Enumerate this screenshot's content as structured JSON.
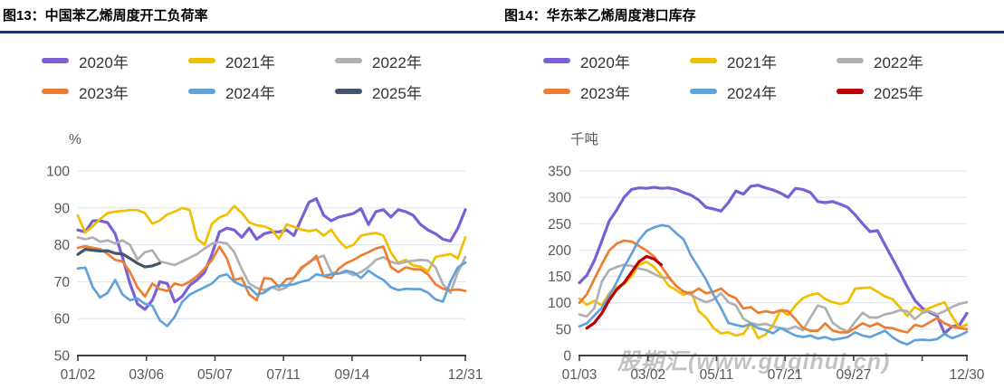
{
  "watermark": {
    "text": "股期汇(www.guqihui.cn)"
  },
  "style": {
    "accent_underline": "#17375E",
    "gridline_color": "#dce3f0",
    "axis_color": "#404040",
    "tick_label_color": "#595959"
  },
  "chart_data": [
    {
      "type": "line",
      "title": "图13：中国苯乙烯周度开工负荷率",
      "ylabel": "%",
      "y_axis": {
        "min": 50,
        "max": 100,
        "step": 10
      },
      "x_max": 52,
      "x_unit": "week",
      "x_ticks": [
        {
          "pos": 0,
          "label": "01/02"
        },
        {
          "pos": 9.2,
          "label": "03/06"
        },
        {
          "pos": 18.4,
          "label": "05/07"
        },
        {
          "pos": 27.6,
          "label": "07/11"
        },
        {
          "pos": 36.8,
          "label": "09/14"
        },
        {
          "pos": 46,
          "label": ""
        },
        {
          "pos": 52,
          "label": "12/31"
        }
      ],
      "series": [
        {
          "name": "2020年",
          "color": "#7A5FD5",
          "x_start": 0,
          "values": [
            84,
            83.5,
            86.5,
            86.5,
            86,
            83,
            76.5,
            69.5,
            64,
            62.5,
            65,
            70,
            69.5,
            64.5,
            66,
            69,
            70.5,
            72.5,
            77.5,
            83.5,
            84.5,
            84,
            82,
            84.5,
            81.5,
            83,
            83.5,
            83.5,
            84,
            82.5,
            87,
            91.5,
            92.5,
            88,
            86.5,
            87.5,
            88,
            88.5,
            89.8,
            85.5,
            89,
            89.5,
            87.5,
            89.5,
            89,
            88,
            85.5,
            84,
            83,
            81.5,
            81,
            84.5,
            89.5
          ]
        },
        {
          "name": "2021年",
          "color": "#F0C000",
          "x_start": 0,
          "values": [
            87.9,
            83.3,
            85,
            87,
            88.6,
            89,
            89.2,
            89.4,
            89.4,
            88.6,
            85.7,
            86.6,
            88.2,
            89,
            90,
            89.4,
            81.6,
            80,
            85.7,
            87.4,
            88.2,
            90.5,
            88.6,
            86.1,
            85.3,
            85,
            84.1,
            81.6,
            85.5,
            84.9,
            84.1,
            83.7,
            84.1,
            82.5,
            84.1,
            81.2,
            79.2,
            80,
            82.5,
            82.9,
            83.2,
            82.5,
            78,
            75.1,
            75.9,
            74.4,
            74.1,
            72.8,
            76.7,
            77.1,
            77.5,
            76.3,
            82
          ]
        },
        {
          "name": "2022年",
          "color": "#B0B0B0",
          "x_start": 0,
          "values": [
            82,
            81.5,
            82,
            80.8,
            81.2,
            80.4,
            81.2,
            80,
            76,
            78,
            78.5,
            75.5,
            75,
            74.5,
            75.5,
            76.5,
            77.5,
            79,
            80.3,
            80.7,
            80.4,
            78,
            73.4,
            69.5,
            68.3,
            67.7,
            68.5,
            67.7,
            68.5,
            71,
            73.4,
            75.4,
            76.3,
            77.1,
            72.6,
            72.2,
            72.6,
            71.8,
            72.6,
            74,
            75.9,
            76.7,
            75.4,
            74.9,
            75.4,
            75.7,
            75.9,
            75.7,
            73.9,
            69.3,
            67,
            72.6,
            76.7
          ]
        },
        {
          "name": "2023年",
          "color": "#ED7D31",
          "x_start": 0,
          "values": [
            79.2,
            79.6,
            79.2,
            78.8,
            77.5,
            75.9,
            75.5,
            72.6,
            68.5,
            66,
            69.5,
            68,
            67.5,
            69.5,
            69,
            70,
            71.5,
            73.5,
            75.9,
            79.5,
            76.3,
            70.5,
            71,
            66.5,
            65,
            71,
            70.7,
            68.5,
            70.7,
            71,
            73.9,
            75.1,
            77,
            71.5,
            71,
            73.5,
            75,
            75.9,
            77.1,
            78,
            79,
            79.5,
            74,
            72.6,
            73.9,
            73.4,
            73.3,
            72,
            69.3,
            68.1,
            67.7,
            67.9,
            67.5
          ]
        },
        {
          "name": "2024年",
          "color": "#62A2DB",
          "x_start": 0,
          "values": [
            73.6,
            73.8,
            68.5,
            65.7,
            67,
            70.5,
            66.5,
            65,
            65.5,
            64,
            63.5,
            59.5,
            58,
            60.5,
            64.5,
            66.5,
            67.5,
            68.5,
            69.5,
            71.5,
            72,
            70,
            69,
            68.5,
            66.5,
            67,
            68.5,
            69,
            69,
            69.3,
            70,
            70.5,
            72,
            71.6,
            72,
            72.2,
            73,
            72.5,
            71,
            73,
            71.6,
            70.5,
            68.5,
            67.7,
            68.1,
            68,
            68,
            67,
            65.2,
            64.6,
            70,
            73.9,
            75.2
          ]
        },
        {
          "name": "2025年",
          "color": "#44546A",
          "x_start": 0,
          "values": [
            77.4,
            78.8,
            78.5,
            78.3,
            78.4,
            77.7,
            77.5,
            76.3,
            75,
            74,
            74.3,
            75
          ]
        }
      ]
    },
    {
      "type": "line",
      "title": "图14：华东苯乙烯周度港口库存",
      "ylabel": "千吨",
      "y_axis": {
        "min": 0,
        "max": 350,
        "step": 50
      },
      "x_max": 52,
      "x_unit": "week",
      "x_ticks": [
        {
          "pos": 0,
          "label": "01/03"
        },
        {
          "pos": 9.2,
          "label": "03/02"
        },
        {
          "pos": 18.4,
          "label": "05/11"
        },
        {
          "pos": 27.6,
          "label": "07/21"
        },
        {
          "pos": 36.8,
          "label": "09/27"
        },
        {
          "pos": 46,
          "label": ""
        },
        {
          "pos": 52,
          "label": "12/30"
        }
      ],
      "series": [
        {
          "name": "2020年",
          "color": "#7A5FD5",
          "x_start": 0,
          "values": [
            138,
            152,
            180,
            217,
            255,
            276,
            300,
            315,
            318,
            317,
            319,
            317,
            318,
            315,
            309,
            304,
            295,
            281,
            278,
            274,
            290,
            312,
            306,
            321,
            323,
            318,
            314,
            308,
            300,
            317,
            315,
            309,
            292,
            290,
            292,
            287,
            281,
            267,
            250,
            235,
            237,
            210,
            184,
            158,
            130,
            105,
            90,
            82,
            75,
            42,
            55,
            58,
            80
          ]
        },
        {
          "name": "2021年",
          "color": "#F0C000",
          "x_start": 0,
          "values": [
            108,
            96,
            104,
            95,
            118,
            130,
            136,
            150,
            172,
            178,
            168,
            152,
            132,
            124,
            115,
            121,
            84,
            72,
            52,
            42,
            44,
            38,
            41,
            61,
            33,
            40,
            58,
            86,
            77,
            95,
            109,
            115,
            118,
            107,
            101,
            98,
            101,
            127,
            128,
            129,
            121,
            112,
            107,
            92,
            75,
            92,
            84,
            90,
            96,
            101,
            75,
            53,
            59
          ]
        },
        {
          "name": "2022年",
          "color": "#B0B0B0",
          "x_start": 0,
          "values": [
            78,
            74,
            90,
            140,
            162,
            168,
            172,
            170,
            165,
            162,
            155,
            148,
            147,
            132,
            121,
            115,
            107,
            101,
            106,
            118,
            101,
            95,
            70,
            62,
            58,
            60,
            55,
            52,
            50,
            55,
            48,
            72,
            95,
            90,
            62,
            52,
            45,
            64,
            81,
            72,
            72,
            78,
            81,
            86,
            84,
            69,
            81,
            84,
            78,
            84,
            92,
            98,
            101
          ]
        },
        {
          "name": "2023年",
          "color": "#ED7D31",
          "x_start": 0,
          "values": [
            100,
            116,
            145,
            173,
            199,
            212,
            218,
            216,
            208,
            199,
            188,
            169,
            149,
            132,
            121,
            118,
            127,
            118,
            121,
            127,
            115,
            109,
            89,
            92,
            81,
            84,
            81,
            86,
            84,
            69,
            52,
            47,
            47,
            61,
            47,
            44,
            44,
            52,
            61,
            55,
            61,
            53,
            52,
            47,
            44,
            58,
            55,
            63,
            71,
            61,
            55,
            52,
            50
          ]
        },
        {
          "name": "2024年",
          "color": "#62A2DB",
          "x_start": 0,
          "values": [
            55,
            61,
            76,
            90,
            113,
            139,
            168,
            193,
            219,
            236,
            243,
            247,
            245,
            232,
            220,
            189,
            167,
            144,
            115,
            90,
            62,
            58,
            55,
            60,
            52,
            48,
            42,
            52,
            45,
            38,
            35,
            38,
            32,
            35,
            30,
            32,
            35,
            44,
            38,
            35,
            41,
            47,
            35,
            26,
            21,
            29,
            30,
            29,
            31,
            41,
            33,
            38,
            45
          ]
        },
        {
          "name": "2025年",
          "color": "#C00000",
          "x_start": 1,
          "values": [
            52,
            62,
            80,
            105,
            125,
            138,
            158,
            178,
            188,
            183,
            172
          ]
        }
      ]
    }
  ]
}
